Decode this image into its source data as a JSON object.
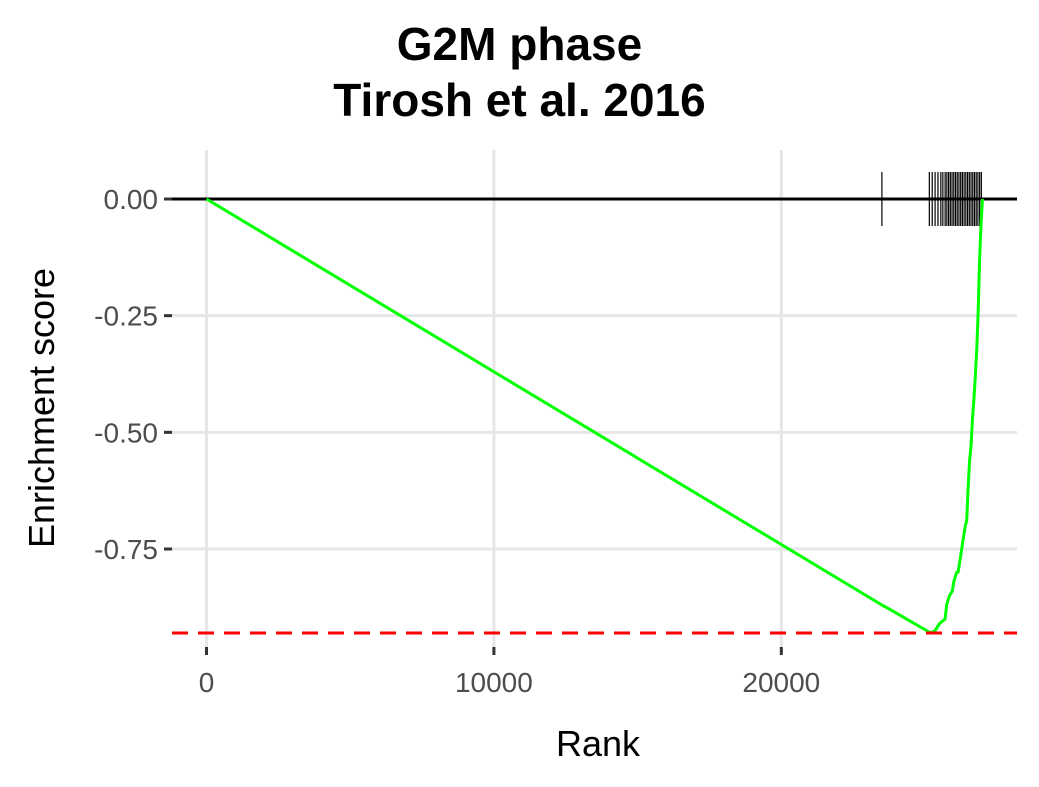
{
  "chart_data": {
    "type": "line",
    "title_lines": [
      "G2M phase",
      "Tirosh et al. 2016"
    ],
    "xlabel": "Rank",
    "ylabel": "Enrichment score",
    "xlim": [
      -1200,
      28200
    ],
    "ylim": [
      -0.96,
      0.105
    ],
    "x_ticks": [
      0,
      10000,
      20000
    ],
    "x_tick_labels": [
      "0",
      "10000",
      "20000"
    ],
    "y_ticks": [
      0.0,
      -0.25,
      -0.5,
      -0.75
    ],
    "y_tick_labels": [
      "0.00",
      "-0.25",
      "-0.50",
      "-0.75"
    ],
    "grid": true,
    "baseline": 0.0,
    "min_enrichment_line": -0.93,
    "colors": {
      "curve": "#00ff00",
      "min_line": "#ff0000",
      "baseline": "#000000",
      "hits": "#000000",
      "grid": "#e6e6e6"
    },
    "series": [
      {
        "x": [
          0,
          23500,
          23650,
          25200,
          25350,
          25500,
          25700,
          25750,
          25800,
          25850,
          25950,
          26000,
          26100,
          26150,
          26250,
          26300,
          26400,
          26450,
          26500,
          26550,
          26600,
          26650,
          26700,
          26750,
          26800,
          26850,
          26900,
          26950,
          27000
        ],
        "y": [
          0.0,
          -0.87,
          -0.875,
          -0.93,
          -0.925,
          -0.91,
          -0.9,
          -0.87,
          -0.86,
          -0.85,
          -0.84,
          -0.82,
          -0.8,
          -0.8,
          -0.76,
          -0.74,
          -0.7,
          -0.69,
          -0.62,
          -0.56,
          -0.53,
          -0.47,
          -0.43,
          -0.38,
          -0.32,
          -0.24,
          -0.13,
          -0.05,
          0.0
        ]
      }
    ],
    "hit_ranks": [
      23500,
      25150,
      25250,
      25350,
      25450,
      25550,
      25620,
      25700,
      25760,
      25820,
      25880,
      25940,
      26000,
      26060,
      26120,
      26180,
      26240,
      26300,
      26360,
      26420,
      26480,
      26540,
      26600,
      26660,
      26720,
      26780,
      26840,
      26900,
      26960
    ]
  }
}
